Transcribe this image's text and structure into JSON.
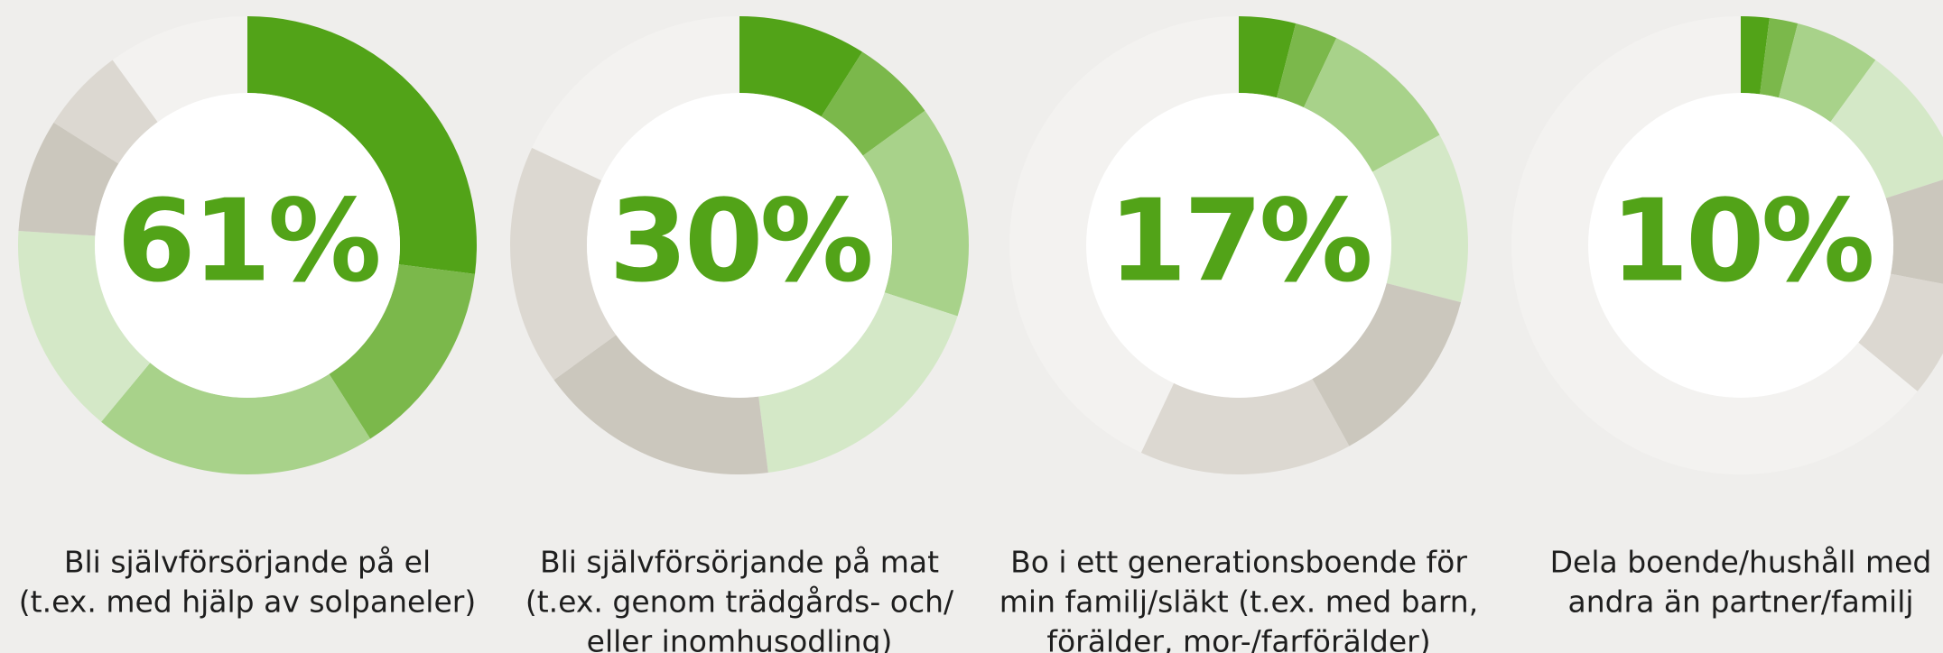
{
  "chart_data": [
    {
      "type": "donut",
      "center_label": "61%",
      "values": [
        27,
        14,
        20,
        15,
        8,
        6,
        10
      ],
      "colors": [
        "#52a318",
        "#7bb84b",
        "#a8d28a",
        "#d4e8c7",
        "#cbc7bd",
        "#dcd8d1",
        "#f3f2f0"
      ],
      "caption_lines": [
        "Bli självförsörjande på el",
        "(t.ex. med hjälp av solpaneler)"
      ]
    },
    {
      "type": "donut",
      "center_label": "30%",
      "values": [
        9,
        6,
        15,
        18,
        17,
        17,
        18
      ],
      "colors": [
        "#52a318",
        "#7bb84b",
        "#a8d28a",
        "#d4e8c7",
        "#cbc7bd",
        "#dcd8d1",
        "#f3f2f0"
      ],
      "caption_lines": [
        "Bli självförsörjande på mat",
        "(t.ex. genom trädgårds- och/",
        "eller inomhusodling)"
      ]
    },
    {
      "type": "donut",
      "center_label": "17%",
      "values": [
        4,
        3,
        10,
        12,
        13,
        15,
        43
      ],
      "colors": [
        "#52a318",
        "#7bb84b",
        "#a8d28a",
        "#d4e8c7",
        "#cbc7bd",
        "#dcd8d1",
        "#f3f2f0"
      ],
      "caption_lines": [
        "Bo i ett generationsboende för",
        "min familj/släkt (t.ex. med barn,",
        "förälder, mor-/farförälder)"
      ]
    },
    {
      "type": "donut",
      "center_label": "10%",
      "values": [
        2,
        2,
        6,
        10,
        8,
        8,
        64
      ],
      "colors": [
        "#52a318",
        "#7bb84b",
        "#a8d28a",
        "#d4e8c7",
        "#cbc7bd",
        "#dcd8d1",
        "#f3f2f0"
      ],
      "caption_lines": [
        "Dela boende/hushåll med",
        "andra än partner/familj"
      ]
    }
  ]
}
